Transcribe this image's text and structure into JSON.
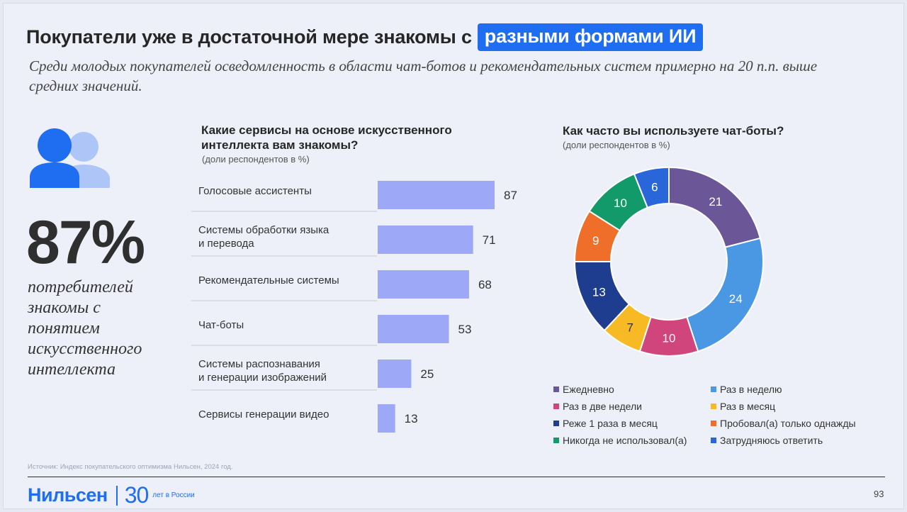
{
  "header": {
    "title_prefix": "Покупатели уже в достаточной мере знакомы с",
    "title_highlight": "разными формами ИИ",
    "subtitle": "Среди молодых покупателей осведомленность в области чат-ботов и рекомендательных систем примерно на 20 п.п. выше средних значений."
  },
  "kpi": {
    "icon": "people-icon",
    "value": "87%",
    "text": "потребителей знакомы с понятием искусственного интеллекта"
  },
  "chart_data": [
    {
      "type": "bar",
      "orientation": "horizontal",
      "title": "Какие сервисы на основе искусственного интеллекта вам знакомы?",
      "subtitle": "(доли респондентов в %)",
      "categories": [
        [
          "Голосовые ассистенты"
        ],
        [
          "Системы обработки языка",
          "и перевода"
        ],
        [
          "Рекомендательные системы"
        ],
        [
          "Чат-боты"
        ],
        [
          "Системы распознавания",
          "и генерации изображений"
        ],
        [
          "Сервисы генерации видео"
        ]
      ],
      "values": [
        87,
        71,
        68,
        53,
        25,
        13
      ],
      "xlim": [
        0,
        100
      ],
      "color": "#9da8f7"
    },
    {
      "type": "pie",
      "donut": true,
      "title": "Как часто вы используете чат-боты?",
      "subtitle": "(доли респондентов в %)",
      "series": [
        {
          "name": "Ежедневно",
          "value": 21,
          "color": "#6b5797"
        },
        {
          "name": "Раз в неделю",
          "value": 24,
          "color": "#4a97e3"
        },
        {
          "name": "Раз в две недели",
          "value": 10,
          "color": "#d0457c"
        },
        {
          "name": "Раз в месяц",
          "value": 7,
          "color": "#f7b924"
        },
        {
          "name": "Реже 1 раза в месяц",
          "value": 13,
          "color": "#1f3d8f"
        },
        {
          "name": "Пробовал(а) только однажды",
          "value": 9,
          "color": "#ef6f2a"
        },
        {
          "name": "Никогда не использовал(а)",
          "value": 10,
          "color": "#139a6a"
        },
        {
          "name": "Затрудняюсь ответить",
          "value": 6,
          "color": "#2966d9"
        }
      ],
      "legend": "bottom"
    }
  ],
  "footer": {
    "source": "Источник: Индекс покупательского оптимизма Нильсен, 2024 год.",
    "brand": "Нильсен",
    "anniversary": "30",
    "anniversary_text": "лет в России",
    "page": "93"
  }
}
